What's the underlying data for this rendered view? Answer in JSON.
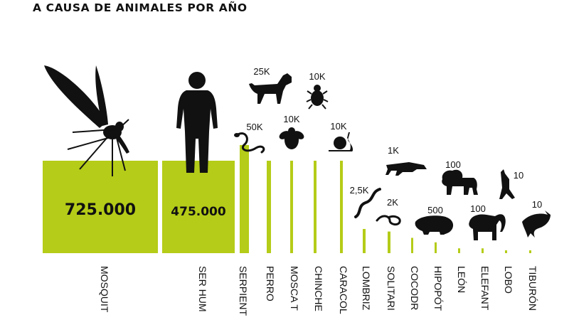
{
  "title": "A CAUSA DE ANIMALES POR AÑO",
  "colors": {
    "bar": "#b5cc18",
    "silhouette": "#111111",
    "background": "#ffffff"
  },
  "chart_data": {
    "type": "bar",
    "title": "A CAUSA DE ANIMALES POR AÑO",
    "xlabel": "",
    "ylabel": "",
    "grid": false,
    "legend": "none",
    "orientation": "vertical, categories written downward",
    "categories": [
      "MOSQUITO",
      "SER HUMANO",
      "SERPIENTE",
      "PERRO",
      "MOSCA TSÉ-TSÉ",
      "CHINCHE",
      "CARACOL",
      "LOMBRIZ",
      "SOLITARIA",
      "COCODRILO",
      "HIPOPÓTAMO",
      "LEÓN",
      "ELEFANTE",
      "LOBO",
      "TIBURÓN"
    ],
    "category_labels_shown": [
      "MOSQUIT",
      "SER HUM",
      "SERPIENT",
      "PERRO",
      "MOSCA T",
      "CHINCHE",
      "CARACOL",
      "LOMBRIZ",
      "SOLITARI",
      "COCODR",
      "HIPOPÓT",
      "LEÓN",
      "ELEFANT",
      "LOBO",
      "TIBURÓN"
    ],
    "values": [
      725000,
      475000,
      50000,
      25000,
      10000,
      10000,
      10000,
      2500,
      2000,
      1000,
      500,
      100,
      100,
      10,
      10
    ],
    "value_labels": [
      "725.000",
      "475.000",
      "50K",
      "25K",
      "10K",
      "10K",
      "10K",
      "2,5K",
      "2K",
      "1K",
      "500",
      "100",
      "100",
      "10",
      "10"
    ],
    "icons": [
      "mosquito-icon",
      "human-icon",
      "snake-icon",
      "dog-icon",
      "fly-icon",
      "bedbug-icon",
      "snail-icon",
      "worm-icon",
      "tapeworm-icon",
      "crocodile-icon",
      "hippo-icon",
      "lion-icon",
      "elephant-icon",
      "wolf-icon",
      "shark-icon"
    ]
  }
}
